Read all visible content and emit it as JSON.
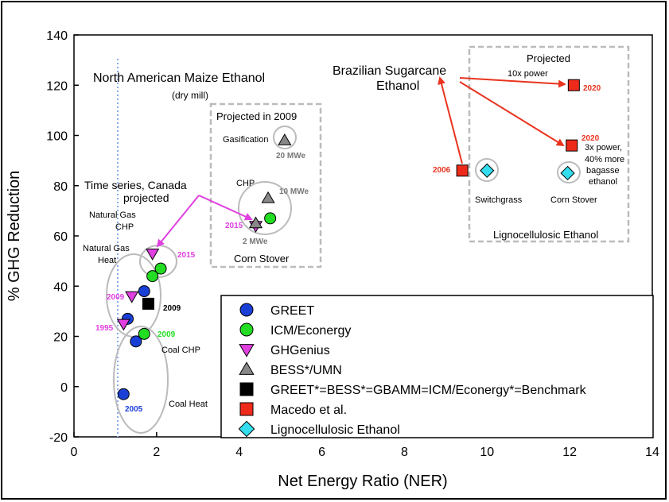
{
  "chart_data": {
    "type": "scatter",
    "xlabel": "Net Energy Ratio (NER)",
    "ylabel": "% GHG Reduction",
    "xlim": [
      0,
      14
    ],
    "ylim": [
      -20,
      140
    ],
    "x_ticks": [
      "0",
      "2",
      "4",
      "6",
      "8",
      "10",
      "12",
      "14"
    ],
    "y_ticks": [
      "-20",
      "0",
      "20",
      "40",
      "60",
      "80",
      "100",
      "120",
      "140"
    ],
    "grid": false,
    "legend_position": "bottom-right",
    "series": [
      {
        "name": "GREET",
        "marker": "circle",
        "color": "#1a3fd6",
        "points": [
          {
            "x": 1.2,
            "y": -3
          },
          {
            "x": 1.5,
            "y": 18
          },
          {
            "x": 1.3,
            "y": 27
          },
          {
            "x": 1.7,
            "y": 38
          }
        ]
      },
      {
        "name": "ICM/Econergy",
        "marker": "circle",
        "color": "#22dd22",
        "points": [
          {
            "x": 1.7,
            "y": 21
          },
          {
            "x": 1.9,
            "y": 44
          },
          {
            "x": 2.1,
            "y": 47
          },
          {
            "x": 4.75,
            "y": 67
          }
        ]
      },
      {
        "name": "GHGenius",
        "marker": "triangle-down",
        "color": "#e040e0",
        "points": [
          {
            "x": 1.2,
            "y": 25
          },
          {
            "x": 1.4,
            "y": 36
          },
          {
            "x": 1.9,
            "y": 53
          },
          {
            "x": 4.4,
            "y": 64
          }
        ]
      },
      {
        "name": "BESS*/UMN",
        "marker": "triangle-up",
        "color": "#888888",
        "points": [
          {
            "x": 4.4,
            "y": 65
          },
          {
            "x": 4.7,
            "y": 75
          },
          {
            "x": 5.1,
            "y": 98
          }
        ]
      },
      {
        "name": "GREET*=BESS*=GBAMM=ICM/Econergy*=Benchmark",
        "marker": "square",
        "color": "#000000",
        "points": [
          {
            "x": 1.8,
            "y": 33
          }
        ]
      },
      {
        "name": "Macedo et al.",
        "marker": "square",
        "color": "#ee2a1b",
        "points": [
          {
            "x": 9.4,
            "y": 86
          },
          {
            "x": 12.1,
            "y": 120
          },
          {
            "x": 12.05,
            "y": 96
          }
        ]
      },
      {
        "name": "Lignocellulosic Ethanol",
        "marker": "diamond",
        "color": "#33ddee",
        "points": [
          {
            "x": 10.0,
            "y": 86
          },
          {
            "x": 11.95,
            "y": 85
          }
        ]
      }
    ],
    "annotations": {
      "maize_title": "North American Maize Ethanol",
      "maize_sub": "(dry mill)",
      "projected_2009": "Projected in 2009",
      "gasification": "Gasification",
      "mwe20": "20 MWe",
      "chp": "CHP",
      "mwe10": "10 MWe",
      "mwe2": "2 MWe",
      "y2015_corn": "2015",
      "corn_stover_box": "Corn Stover",
      "timeseries_1": "Time series, Canada",
      "timeseries_2": "projected",
      "ng_chp_1": "Natural Gas",
      "ng_chp_2": "CHP",
      "ng_heat_1": "Natural Gas",
      "ng_heat_2": "Heat",
      "y2015": "2015",
      "y2009_magenta": "2009",
      "y2009_black": "2009",
      "y1995": "1995",
      "y2009_green": "2009",
      "coal_chp": "Coal CHP",
      "coal_heat": "Coal Heat",
      "y2005": "2005",
      "brazil_1": "Brazilian Sugarcane",
      "brazil_2": "Ethanol",
      "projected": "Projected",
      "power10x": "10x power",
      "y2020_top": "2020",
      "y2020_mid": "2020",
      "power3x_1": "3x power,",
      "power3x_2": "40% more",
      "power3x_3": "bagasse",
      "power3x_4": "ethanol",
      "y2006": "2006",
      "switchgrass": "Switchgrass",
      "corn_stover": "Corn Stover",
      "ligno_box": "Lignocellulosic Ethanol"
    }
  }
}
